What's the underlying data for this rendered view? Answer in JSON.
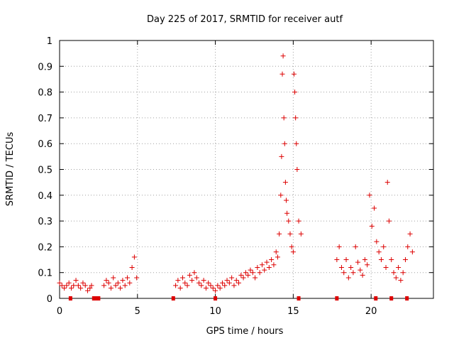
{
  "chart_data": {
    "type": "scatter",
    "title": "Day 225 of 2017, SRMTID for receiver autf",
    "xlabel": "GPS time / hours",
    "ylabel": "SRMTID / TECUs",
    "xlim": [
      0,
      24
    ],
    "ylim": [
      0,
      1
    ],
    "xticks": [
      0,
      5,
      10,
      15,
      20
    ],
    "xtick_labels": [
      "0",
      "5",
      "10",
      "15",
      "20"
    ],
    "yticks": [
      0,
      0.1,
      0.2,
      0.3,
      0.4,
      0.5,
      0.6,
      0.7,
      0.8,
      0.9,
      1
    ],
    "ytick_labels": [
      "0",
      "0.1",
      "0.2",
      "0.3",
      "0.4",
      "0.5",
      "0.6",
      "0.7",
      "0.8",
      "0.9",
      "1"
    ],
    "grid": true,
    "marker": "+",
    "color": "#dd0000",
    "gap_markers_x": [
      0.7,
      2.2,
      2.35,
      2.5,
      7.3,
      10.0,
      15.35,
      17.8,
      20.3,
      21.3,
      22.3
    ],
    "series": [
      {
        "name": "SRMTID",
        "x": [
          0.0,
          0.15,
          0.3,
          0.45,
          0.6,
          0.75,
          0.9,
          1.05,
          1.2,
          1.35,
          1.5,
          1.65,
          1.8,
          1.95,
          2.05,
          2.85,
          3.0,
          3.15,
          3.3,
          3.45,
          3.6,
          3.75,
          3.9,
          4.05,
          4.2,
          4.35,
          4.5,
          4.65,
          4.8,
          4.95,
          7.45,
          7.6,
          7.75,
          7.9,
          8.05,
          8.2,
          8.35,
          8.5,
          8.65,
          8.8,
          8.95,
          9.1,
          9.25,
          9.4,
          9.55,
          9.7,
          9.85,
          10.0,
          10.15,
          10.3,
          10.45,
          10.6,
          10.75,
          10.9,
          11.05,
          11.2,
          11.35,
          11.5,
          11.65,
          11.8,
          11.95,
          12.1,
          12.25,
          12.4,
          12.55,
          12.7,
          12.85,
          13.0,
          13.15,
          13.3,
          13.45,
          13.6,
          13.75,
          13.9,
          14.0,
          14.1,
          14.2,
          14.25,
          14.3,
          14.35,
          14.4,
          14.45,
          14.5,
          14.55,
          14.6,
          14.7,
          14.8,
          14.9,
          15.0,
          15.05,
          15.1,
          15.15,
          15.2,
          15.25,
          15.35,
          15.5,
          17.8,
          17.95,
          18.1,
          18.25,
          18.4,
          18.55,
          18.7,
          18.85,
          19.0,
          19.15,
          19.3,
          19.45,
          19.6,
          19.75,
          19.9,
          20.05,
          20.2,
          20.35,
          20.5,
          20.65,
          20.8,
          20.95,
          21.05,
          21.15,
          21.3,
          21.45,
          21.6,
          21.75,
          21.9,
          22.05,
          22.2,
          22.35,
          22.5,
          22.65
        ],
        "y": [
          0.06,
          0.05,
          0.04,
          0.05,
          0.06,
          0.04,
          0.05,
          0.07,
          0.05,
          0.04,
          0.06,
          0.05,
          0.03,
          0.04,
          0.05,
          0.05,
          0.07,
          0.06,
          0.04,
          0.08,
          0.05,
          0.06,
          0.04,
          0.07,
          0.05,
          0.08,
          0.06,
          0.12,
          0.16,
          0.08,
          0.05,
          0.07,
          0.04,
          0.08,
          0.06,
          0.05,
          0.09,
          0.07,
          0.1,
          0.08,
          0.06,
          0.05,
          0.07,
          0.04,
          0.06,
          0.05,
          0.04,
          0.03,
          0.05,
          0.04,
          0.06,
          0.05,
          0.07,
          0.06,
          0.08,
          0.05,
          0.07,
          0.06,
          0.09,
          0.08,
          0.1,
          0.09,
          0.11,
          0.1,
          0.08,
          0.12,
          0.1,
          0.13,
          0.11,
          0.14,
          0.12,
          0.15,
          0.13,
          0.18,
          0.16,
          0.25,
          0.4,
          0.55,
          0.87,
          0.94,
          0.7,
          0.6,
          0.45,
          0.38,
          0.33,
          0.3,
          0.25,
          0.2,
          0.18,
          0.87,
          0.8,
          0.7,
          0.6,
          0.5,
          0.3,
          0.25,
          0.15,
          0.2,
          0.12,
          0.1,
          0.15,
          0.08,
          0.12,
          0.1,
          0.2,
          0.14,
          0.11,
          0.09,
          0.15,
          0.13,
          0.4,
          0.28,
          0.35,
          0.22,
          0.18,
          0.15,
          0.2,
          0.12,
          0.45,
          0.3,
          0.15,
          0.1,
          0.08,
          0.12,
          0.07,
          0.1,
          0.15,
          0.2,
          0.25,
          0.18
        ]
      }
    ]
  }
}
